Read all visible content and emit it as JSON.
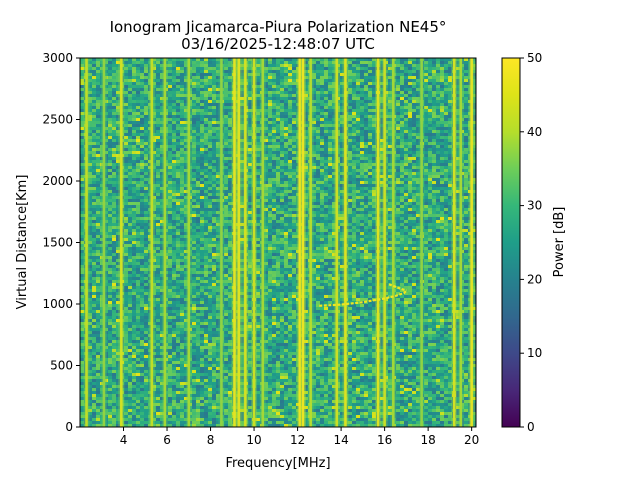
{
  "chart_data": {
    "type": "heatmap",
    "title": "Ionogram Jicamarca-Piura Polarization NE45°",
    "subtitle": "03/16/2025-12:48:07 UTC",
    "xlabel": "Frequency[MHz]",
    "ylabel": "Virtual Distance[Km]",
    "xlim": [
      2.0,
      20.2
    ],
    "ylim": [
      0,
      3000
    ],
    "x_ticks": [
      4,
      6,
      8,
      10,
      12,
      14,
      16,
      18,
      20
    ],
    "y_ticks": [
      0,
      500,
      1000,
      1500,
      2000,
      2500,
      3000
    ],
    "colorbar": {
      "label": "Power [dB]",
      "range": [
        0,
        50
      ],
      "ticks": [
        0,
        10,
        20,
        30,
        40,
        50
      ],
      "colormap": "viridis"
    },
    "background_power_db": 27,
    "interference_lines_mhz": [
      {
        "freq": 2.3,
        "power_db": 45
      },
      {
        "freq": 3.1,
        "power_db": 40
      },
      {
        "freq": 3.9,
        "power_db": 47
      },
      {
        "freq": 5.3,
        "power_db": 45
      },
      {
        "freq": 5.9,
        "power_db": 42
      },
      {
        "freq": 7.0,
        "power_db": 42
      },
      {
        "freq": 8.5,
        "power_db": 40
      },
      {
        "freq": 9.1,
        "power_db": 49
      },
      {
        "freq": 9.3,
        "power_db": 48
      },
      {
        "freq": 9.6,
        "power_db": 47
      },
      {
        "freq": 10.0,
        "power_db": 46
      },
      {
        "freq": 10.4,
        "power_db": 42
      },
      {
        "freq": 12.1,
        "power_db": 50
      },
      {
        "freq": 12.25,
        "power_db": 50
      },
      {
        "freq": 12.6,
        "power_db": 44
      },
      {
        "freq": 13.8,
        "power_db": 46
      },
      {
        "freq": 14.2,
        "power_db": 48
      },
      {
        "freq": 15.7,
        "power_db": 48
      },
      {
        "freq": 16.0,
        "power_db": 46
      },
      {
        "freq": 16.4,
        "power_db": 42
      },
      {
        "freq": 17.7,
        "power_db": 40
      },
      {
        "freq": 19.2,
        "power_db": 47
      },
      {
        "freq": 19.5,
        "power_db": 42
      },
      {
        "freq": 20.0,
        "power_db": 49
      }
    ],
    "echo_trace": {
      "power_db": 48,
      "lower_branch": [
        [
          13.0,
          985
        ],
        [
          13.5,
          990
        ],
        [
          14.0,
          995
        ],
        [
          14.5,
          1005
        ],
        [
          15.0,
          1015
        ],
        [
          15.5,
          1030
        ],
        [
          16.0,
          1045
        ],
        [
          16.5,
          1065
        ],
        [
          16.9,
          1090
        ],
        [
          17.0,
          1110
        ]
      ],
      "upper_branch": [
        [
          16.2,
          1160
        ],
        [
          16.5,
          1140
        ],
        [
          16.8,
          1120
        ],
        [
          17.0,
          1110
        ]
      ]
    }
  }
}
